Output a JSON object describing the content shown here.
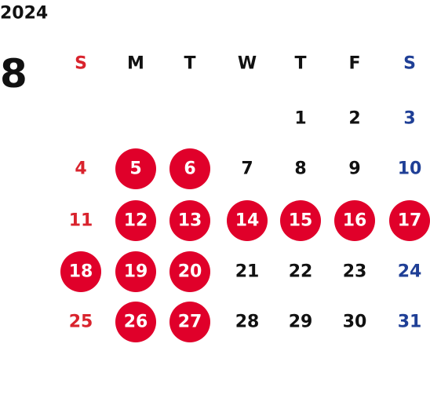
{
  "year": "2024",
  "month": "8",
  "weekdays": [
    "S",
    "M",
    "T",
    "W",
    "T",
    "F",
    "S"
  ],
  "colors": {
    "sunday": "#d9232d",
    "saturday": "#1f3f96",
    "weekday": "#111111",
    "highlight": "#e0002a",
    "highlight_text": "#ffffff"
  },
  "weeks": [
    [
      null,
      null,
      null,
      null,
      {
        "day": "1",
        "highlighted": false
      },
      {
        "day": "2",
        "highlighted": false
      },
      {
        "day": "3",
        "highlighted": false
      }
    ],
    [
      {
        "day": "4",
        "highlighted": false
      },
      {
        "day": "5",
        "highlighted": true
      },
      {
        "day": "6",
        "highlighted": true
      },
      {
        "day": "7",
        "highlighted": false
      },
      {
        "day": "8",
        "highlighted": false
      },
      {
        "day": "9",
        "highlighted": false
      },
      {
        "day": "10",
        "highlighted": false
      }
    ],
    [
      {
        "day": "11",
        "highlighted": false
      },
      {
        "day": "12",
        "highlighted": true
      },
      {
        "day": "13",
        "highlighted": true
      },
      {
        "day": "14",
        "highlighted": true
      },
      {
        "day": "15",
        "highlighted": true
      },
      {
        "day": "16",
        "highlighted": true
      },
      {
        "day": "17",
        "highlighted": true
      }
    ],
    [
      {
        "day": "18",
        "highlighted": true
      },
      {
        "day": "19",
        "highlighted": true
      },
      {
        "day": "20",
        "highlighted": true
      },
      {
        "day": "21",
        "highlighted": false
      },
      {
        "day": "22",
        "highlighted": false
      },
      {
        "day": "23",
        "highlighted": false
      },
      {
        "day": "24",
        "highlighted": false
      }
    ],
    [
      {
        "day": "25",
        "highlighted": false
      },
      {
        "day": "26",
        "highlighted": true
      },
      {
        "day": "27",
        "highlighted": true
      },
      {
        "day": "28",
        "highlighted": false
      },
      {
        "day": "29",
        "highlighted": false
      },
      {
        "day": "30",
        "highlighted": false
      },
      {
        "day": "31",
        "highlighted": false
      }
    ]
  ]
}
